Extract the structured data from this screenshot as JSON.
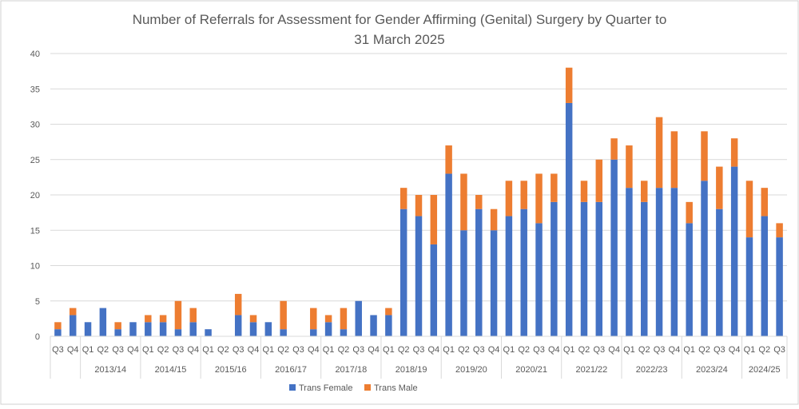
{
  "chart_data": {
    "type": "bar",
    "stacked": true,
    "title_lines": [
      "Number of Referrals for Assessment for Gender Affirming (Genital) Surgery by Quarter to",
      "31 March 2025"
    ],
    "xlabel": "",
    "ylabel": "",
    "ylim": [
      0,
      40
    ],
    "yticks": [
      "0",
      "5",
      "10",
      "15",
      "20",
      "25",
      "30",
      "35",
      "40"
    ],
    "grid": true,
    "legend_position": "bottom-center",
    "groups": [
      {
        "label": "",
        "quarters": [
          "Q3",
          "Q4"
        ]
      },
      {
        "label": "2013/14",
        "quarters": [
          "Q1",
          "Q2",
          "Q3",
          "Q4"
        ]
      },
      {
        "label": "2014/15",
        "quarters": [
          "Q1",
          "Q2",
          "Q3",
          "Q4"
        ]
      },
      {
        "label": "2015/16",
        "quarters": [
          "Q1",
          "Q2",
          "Q3",
          "Q4"
        ]
      },
      {
        "label": "2016/17",
        "quarters": [
          "Q1",
          "Q2",
          "Q3",
          "Q4"
        ]
      },
      {
        "label": "2017/18",
        "quarters": [
          "Q1",
          "Q2",
          "Q3",
          "Q4"
        ]
      },
      {
        "label": "2018/19",
        "quarters": [
          "Q1",
          "Q2",
          "Q3",
          "Q4"
        ]
      },
      {
        "label": "2019/20",
        "quarters": [
          "Q1",
          "Q2",
          "Q3",
          "Q4"
        ]
      },
      {
        "label": "2020/21",
        "quarters": [
          "Q1",
          "Q2",
          "Q3",
          "Q4"
        ]
      },
      {
        "label": "2021/22",
        "quarters": [
          "Q1",
          "Q2",
          "Q3",
          "Q4"
        ]
      },
      {
        "label": "2022/23",
        "quarters": [
          "Q1",
          "Q2",
          "Q3",
          "Q4"
        ]
      },
      {
        "label": "2023/24",
        "quarters": [
          "Q1",
          "Q2",
          "Q3",
          "Q4"
        ]
      },
      {
        "label": "2024/25",
        "quarters": [
          "Q1",
          "Q2",
          "Q3"
        ]
      }
    ],
    "series": [
      {
        "name": "Trans Female",
        "color": "#4472c4",
        "values": [
          1,
          3,
          2,
          4,
          1,
          2,
          2,
          2,
          1,
          2,
          1,
          0,
          3,
          2,
          2,
          1,
          0,
          1,
          2,
          1,
          5,
          3,
          3,
          18,
          17,
          13,
          23,
          15,
          18,
          15,
          17,
          18,
          16,
          19,
          33,
          19,
          19,
          25,
          21,
          19,
          21,
          21,
          16,
          22,
          18,
          24,
          14,
          17,
          14
        ]
      },
      {
        "name": "Trans Male",
        "color": "#ed7d31",
        "values": [
          1,
          1,
          0,
          0,
          1,
          0,
          1,
          1,
          4,
          2,
          0,
          0,
          3,
          1,
          0,
          4,
          0,
          3,
          1,
          3,
          0,
          0,
          1,
          3,
          3,
          7,
          4,
          8,
          2,
          3,
          5,
          4,
          7,
          4,
          5,
          3,
          6,
          3,
          6,
          3,
          10,
          8,
          3,
          7,
          6,
          4,
          8,
          4,
          2
        ]
      }
    ]
  }
}
